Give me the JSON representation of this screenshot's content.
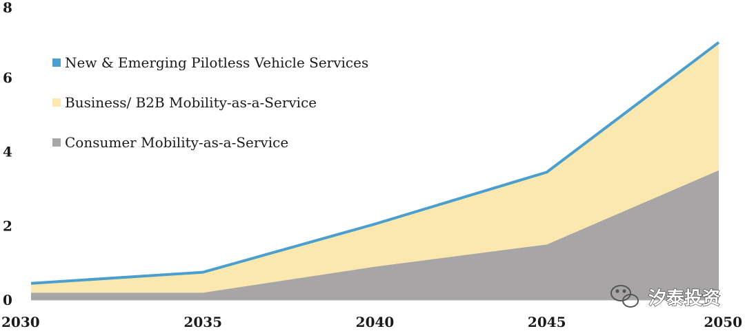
{
  "chart_data": {
    "type": "area",
    "stacked": true,
    "title": "",
    "xlabel": "",
    "ylabel": "",
    "x": [
      2030,
      2035,
      2040,
      2045,
      2050
    ],
    "xlim": [
      2030,
      2050
    ],
    "ylim": [
      0,
      8
    ],
    "x_ticks": [
      "2030",
      "2035",
      "2040",
      "2045",
      "2050"
    ],
    "y_ticks": [
      "0",
      "2",
      "4",
      "6",
      "8"
    ],
    "grid": false,
    "legend_position": "top-left",
    "series": [
      {
        "name": "Consumer Mobility-as-a-Service",
        "values": [
          0.2,
          0.2,
          0.9,
          1.5,
          3.5
        ],
        "color": "#a7a5a5",
        "style": "area"
      },
      {
        "name": "Business/ B2B Mobility-as-a-Service",
        "values": [
          0.25,
          0.55,
          1.15,
          1.95,
          3.4
        ],
        "color": "#fbe8ae",
        "style": "area"
      },
      {
        "name": "New & Emerging Pilotless Vehicle Services",
        "values": [
          0.0,
          0.0,
          0.0,
          0.0,
          0.05
        ],
        "color": "#4a9fce",
        "style": "top-line"
      }
    ]
  },
  "legend": [
    {
      "label": "New & Emerging Pilotless Vehicle Services",
      "color": "#4a9fce"
    },
    {
      "label": "Business/ B2B Mobility-as-a-Service",
      "color": "#fbe8ae"
    },
    {
      "label": "Consumer Mobility-as-a-Service",
      "color": "#a7a5a5"
    }
  ],
  "watermark": {
    "text": "汐泰投资",
    "icon": "wechat-icon"
  }
}
